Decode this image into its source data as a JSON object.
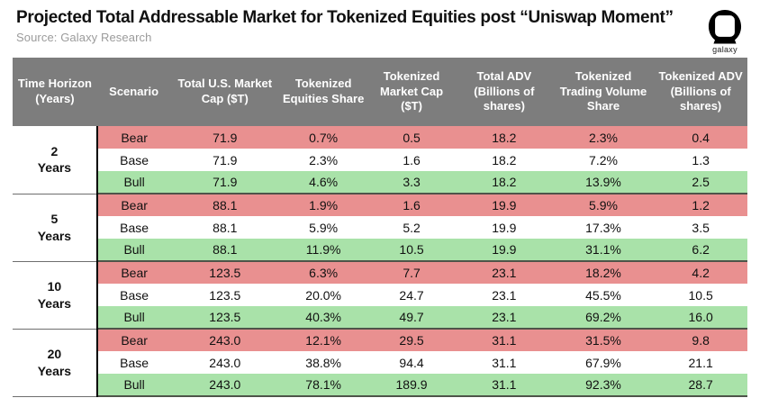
{
  "header": {
    "title": "Projected Total Addressable Market for Tokenized Equities post “Uniswap Moment”",
    "source": "Source: Galaxy Research",
    "logo_label": "galaxy"
  },
  "colors": {
    "header_bg": "#7d7d7d",
    "bear_bg": "#e99090",
    "base_bg": "#ffffff",
    "bull_bg": "#a9e2a9",
    "group_divider": "#4e5449"
  },
  "chart_data": {
    "type": "table",
    "title": "Projected Total Addressable Market for Tokenized Equities post “Uniswap Moment”",
    "columns": [
      "Time Horizon (Years)",
      "Scenario",
      "Total U.S. Market Cap ($T)",
      "Tokenized Equities Share",
      "Tokenized Market Cap ($T)",
      "Total ADV (Billions of shares)",
      "Tokenized Trading Volume Share",
      "Tokenized ADV (Billions of shares)"
    ],
    "groups": [
      {
        "time_horizon": "2 Years",
        "rows": [
          {
            "scenario": "Bear",
            "values": [
              "71.9",
              "0.7%",
              "0.5",
              "18.2",
              "2.3%",
              "0.4"
            ]
          },
          {
            "scenario": "Base",
            "values": [
              "71.9",
              "2.3%",
              "1.6",
              "18.2",
              "7.2%",
              "1.3"
            ]
          },
          {
            "scenario": "Bull",
            "values": [
              "71.9",
              "4.6%",
              "3.3",
              "18.2",
              "13.9%",
              "2.5"
            ]
          }
        ]
      },
      {
        "time_horizon": "5 Years",
        "rows": [
          {
            "scenario": "Bear",
            "values": [
              "88.1",
              "1.9%",
              "1.6",
              "19.9",
              "5.9%",
              "1.2"
            ]
          },
          {
            "scenario": "Base",
            "values": [
              "88.1",
              "5.9%",
              "5.2",
              "19.9",
              "17.3%",
              "3.5"
            ]
          },
          {
            "scenario": "Bull",
            "values": [
              "88.1",
              "11.9%",
              "10.5",
              "19.9",
              "31.1%",
              "6.2"
            ]
          }
        ]
      },
      {
        "time_horizon": "10 Years",
        "rows": [
          {
            "scenario": "Bear",
            "values": [
              "123.5",
              "6.3%",
              "7.7",
              "23.1",
              "18.2%",
              "4.2"
            ]
          },
          {
            "scenario": "Base",
            "values": [
              "123.5",
              "20.0%",
              "24.7",
              "23.1",
              "45.5%",
              "10.5"
            ]
          },
          {
            "scenario": "Bull",
            "values": [
              "123.5",
              "40.3%",
              "49.7",
              "23.1",
              "69.2%",
              "16.0"
            ]
          }
        ]
      },
      {
        "time_horizon": "20 Years",
        "rows": [
          {
            "scenario": "Bear",
            "values": [
              "243.0",
              "12.1%",
              "29.5",
              "31.1",
              "31.5%",
              "9.8"
            ]
          },
          {
            "scenario": "Base",
            "values": [
              "243.0",
              "38.8%",
              "94.4",
              "31.1",
              "67.9%",
              "21.1"
            ]
          },
          {
            "scenario": "Bull",
            "values": [
              "243.0",
              "78.1%",
              "189.9",
              "31.1",
              "92.3%",
              "28.7"
            ]
          }
        ]
      }
    ]
  }
}
